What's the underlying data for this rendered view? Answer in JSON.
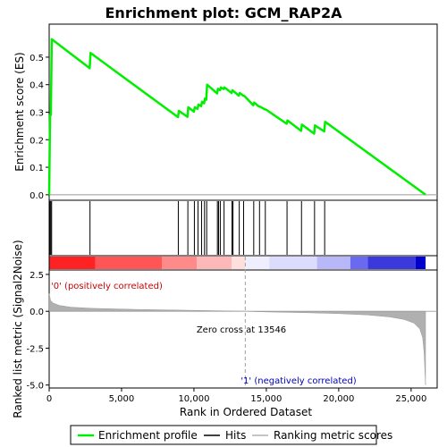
{
  "chart_data": {
    "type": "line",
    "title": "Enrichment plot: GCM_RAP2A",
    "colors": {
      "enrichment_line": "#00ee00",
      "hits": "#000000",
      "metric_fill": "#b0b0b0",
      "zero_cross_line": "#a0a0a0",
      "positive_label": "#cc0000",
      "negative_label": "#0000bb"
    },
    "top_panel": {
      "ylabel": "Enrichment score (ES)",
      "ylim": [
        -0.02,
        0.62
      ],
      "yticks": [
        0.0,
        0.1,
        0.2,
        0.3,
        0.4,
        0.5
      ],
      "ytick_labels": [
        "0.0",
        "0.1",
        "0.2",
        "0.3",
        "0.4",
        "0.5"
      ],
      "series": [
        {
          "name": "Enrichment profile",
          "x": [
            0,
            60,
            120,
            180,
            2800,
            2860,
            8900,
            8960,
            9550,
            9610,
            10000,
            10060,
            10250,
            10310,
            10500,
            10560,
            10700,
            10760,
            10850,
            10910,
            11600,
            11660,
            11800,
            11860,
            12050,
            12110,
            12600,
            12660,
            13100,
            13160,
            13400,
            13460,
            14100,
            14160,
            14500,
            14560,
            14900,
            14960,
            16400,
            16460,
            17400,
            17460,
            18300,
            18360,
            19000,
            19060,
            26000
          ],
          "y": [
            0.0,
            0.29,
            0.29,
            0.565,
            0.46,
            0.515,
            0.282,
            0.305,
            0.283,
            0.318,
            0.302,
            0.318,
            0.312,
            0.328,
            0.322,
            0.338,
            0.332,
            0.35,
            0.345,
            0.4,
            0.368,
            0.385,
            0.38,
            0.39,
            0.384,
            0.39,
            0.37,
            0.38,
            0.36,
            0.37,
            0.36,
            0.36,
            0.325,
            0.335,
            0.32,
            0.32,
            0.31,
            0.31,
            0.258,
            0.27,
            0.232,
            0.255,
            0.222,
            0.252,
            0.23,
            0.265,
            0.0
          ]
        }
      ]
    },
    "hits_panel": {
      "positions": [
        50,
        110,
        170,
        2820,
        8920,
        9580,
        10030,
        10280,
        10530,
        10730,
        10880,
        11620,
        11700,
        11820,
        12080,
        12630,
        12700,
        13130,
        13430,
        14130,
        14530,
        14930,
        16430,
        17430,
        18330,
        19030
      ]
    },
    "metric_panel": {
      "ylabel": "Ranked list metric (Signal2Noise)",
      "xlabel": "Rank in Ordered Dataset",
      "ylim": [
        -5.2,
        2.8
      ],
      "yticks": [
        2.5,
        0.0,
        -2.5,
        -5.0
      ],
      "ytick_labels": [
        "2.5",
        "0.0",
        "-2.5",
        "-5.0"
      ],
      "xlim": [
        0,
        26800
      ],
      "xticks": [
        0,
        5000,
        10000,
        15000,
        20000,
        25000
      ],
      "xtick_labels": [
        "0",
        "5,000",
        "10,000",
        "15,000",
        "20,000",
        "25,000"
      ],
      "zero_cross_text": "Zero cross at 13546",
      "zero_cross": 13546,
      "positive_label": "'0' (positively correlated)",
      "negative_label": "'1' (negatively correlated)",
      "metric_curve": {
        "x": [
          0,
          100,
          300,
          700,
          1500,
          3000,
          6000,
          9000,
          12000,
          13546,
          15000,
          18000,
          20000,
          22000,
          23500,
          24500,
          25200,
          25600,
          25800,
          25900,
          26000
        ],
        "y": [
          1.2,
          0.72,
          0.55,
          0.4,
          0.28,
          0.2,
          0.13,
          0.08,
          0.03,
          0.0,
          -0.04,
          -0.1,
          -0.16,
          -0.25,
          -0.38,
          -0.55,
          -0.8,
          -1.2,
          -1.8,
          -2.8,
          -5.0
        ]
      }
    },
    "color_bar": {
      "segments": [
        {
          "from": 0,
          "to": 3200,
          "color": "#ff2222"
        },
        {
          "from": 3200,
          "to": 7800,
          "color": "#ff5555"
        },
        {
          "from": 7800,
          "to": 10200,
          "color": "#ff8a8a"
        },
        {
          "from": 10200,
          "to": 12600,
          "color": "#ffb8b8"
        },
        {
          "from": 12600,
          "to": 13546,
          "color": "#ffdede"
        },
        {
          "from": 13546,
          "to": 15200,
          "color": "#eeeeff"
        },
        {
          "from": 15200,
          "to": 18500,
          "color": "#dcdcff"
        },
        {
          "from": 18500,
          "to": 20800,
          "color": "#b8b8f8"
        },
        {
          "from": 20800,
          "to": 22000,
          "color": "#6a6af0"
        },
        {
          "from": 22000,
          "to": 25300,
          "color": "#3a3adc"
        },
        {
          "from": 25300,
          "to": 26000,
          "color": "#0000cc"
        }
      ]
    },
    "legend": {
      "placement": "bottom",
      "items": [
        {
          "label": "Enrichment profile",
          "color": "#00ee00",
          "kind": "line"
        },
        {
          "label": "Hits",
          "color": "#000000",
          "kind": "line"
        },
        {
          "label": "Ranking metric scores",
          "color": "#b0b0b0",
          "kind": "line"
        }
      ]
    }
  }
}
